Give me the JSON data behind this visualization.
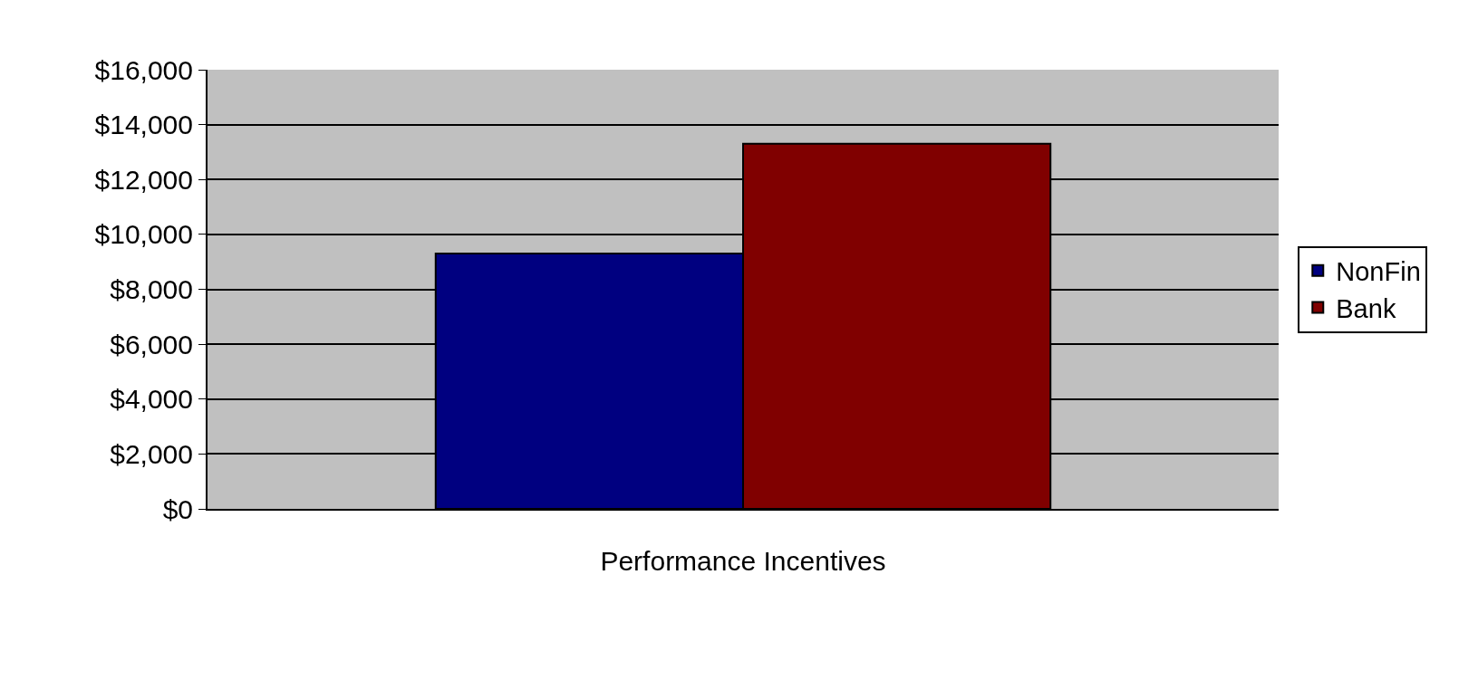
{
  "chart_data": {
    "type": "bar",
    "categories": [
      "Performance Incentives"
    ],
    "series": [
      {
        "name": "NonFin",
        "color": "#000080",
        "values": [
          9300
        ]
      },
      {
        "name": "Bank",
        "color": "#800000",
        "values": [
          13300
        ]
      }
    ],
    "ylim": [
      0,
      16000
    ],
    "yticks": [
      {
        "value": 0,
        "label": "$0"
      },
      {
        "value": 2000,
        "label": "$2,000"
      },
      {
        "value": 4000,
        "label": "$4,000"
      },
      {
        "value": 6000,
        "label": "$6,000"
      },
      {
        "value": 8000,
        "label": "$8,000"
      },
      {
        "value": 10000,
        "label": "$10,000"
      },
      {
        "value": 12000,
        "label": "$12,000"
      },
      {
        "value": 14000,
        "label": "$14,000"
      },
      {
        "value": 16000,
        "label": "$16,000"
      }
    ],
    "grid": "y",
    "legend": "right"
  }
}
